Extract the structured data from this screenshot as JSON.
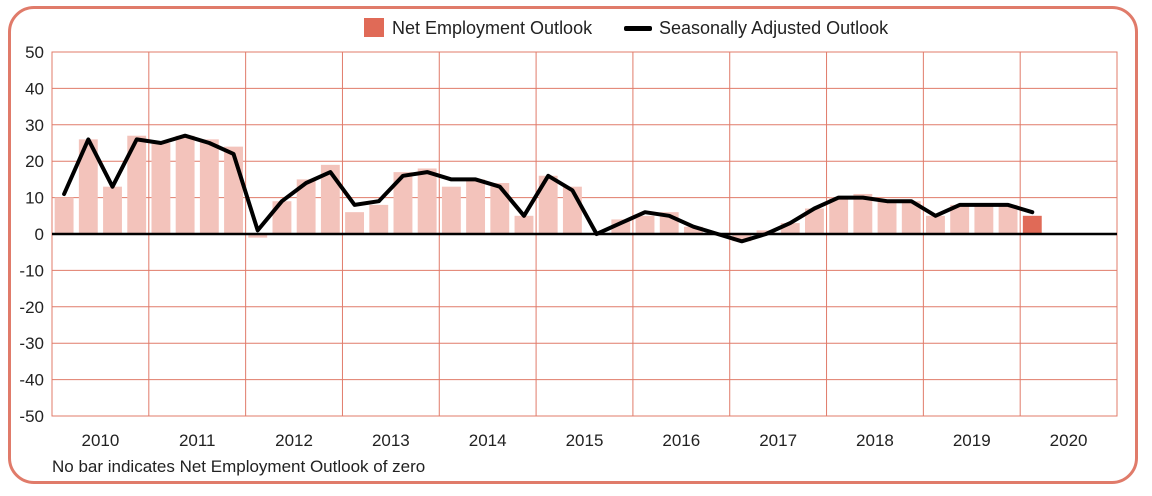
{
  "chart_data": {
    "type": "bar",
    "y_ticks": [
      "50",
      "40",
      "30",
      "20",
      "10",
      "0",
      "-10",
      "-20",
      "-30",
      "-40",
      "-50"
    ],
    "ylim": [
      -50,
      50
    ],
    "x_year_labels": [
      "2010",
      "2011",
      "2012",
      "2013",
      "2014",
      "2015",
      "2016",
      "2017",
      "2018",
      "2019",
      "2020"
    ],
    "quarters_per_year": 4,
    "grid": true,
    "legend_position": "top-center",
    "legend": [
      "Net Employment Outlook",
      "Seasonally Adjusted Outlook"
    ],
    "footnote": "No bar indicates Net Employment Outlook of zero",
    "series": [
      {
        "name": "Net Employment Outlook",
        "kind": "bar",
        "values": [
          10,
          26,
          13,
          27,
          25,
          27,
          26,
          24,
          -1,
          9,
          15,
          19,
          6,
          8,
          17,
          18,
          13,
          15,
          14,
          5,
          16,
          13,
          0,
          4,
          5,
          6,
          2,
          0,
          -2,
          1,
          3,
          7,
          10,
          11,
          9,
          9,
          5,
          8,
          8,
          8,
          5
        ],
        "highlight_last": true
      },
      {
        "name": "Seasonally Adjusted Outlook",
        "kind": "line",
        "values": [
          11,
          26,
          13,
          26,
          25,
          27,
          25,
          22,
          1,
          9,
          14,
          17,
          8,
          9,
          16,
          17,
          15,
          15,
          13,
          5,
          16,
          12,
          0,
          3,
          6,
          5,
          2,
          0,
          -2,
          0,
          3,
          7,
          10,
          10,
          9,
          9,
          5,
          8,
          8,
          8,
          6
        ]
      }
    ],
    "colors": {
      "bar": "#f3c3bb",
      "bar_highlight": "#e06a57",
      "line": "#000000",
      "grid": "#e07b6a",
      "zero_line": "#000000",
      "frame": "#e07b6a"
    }
  }
}
